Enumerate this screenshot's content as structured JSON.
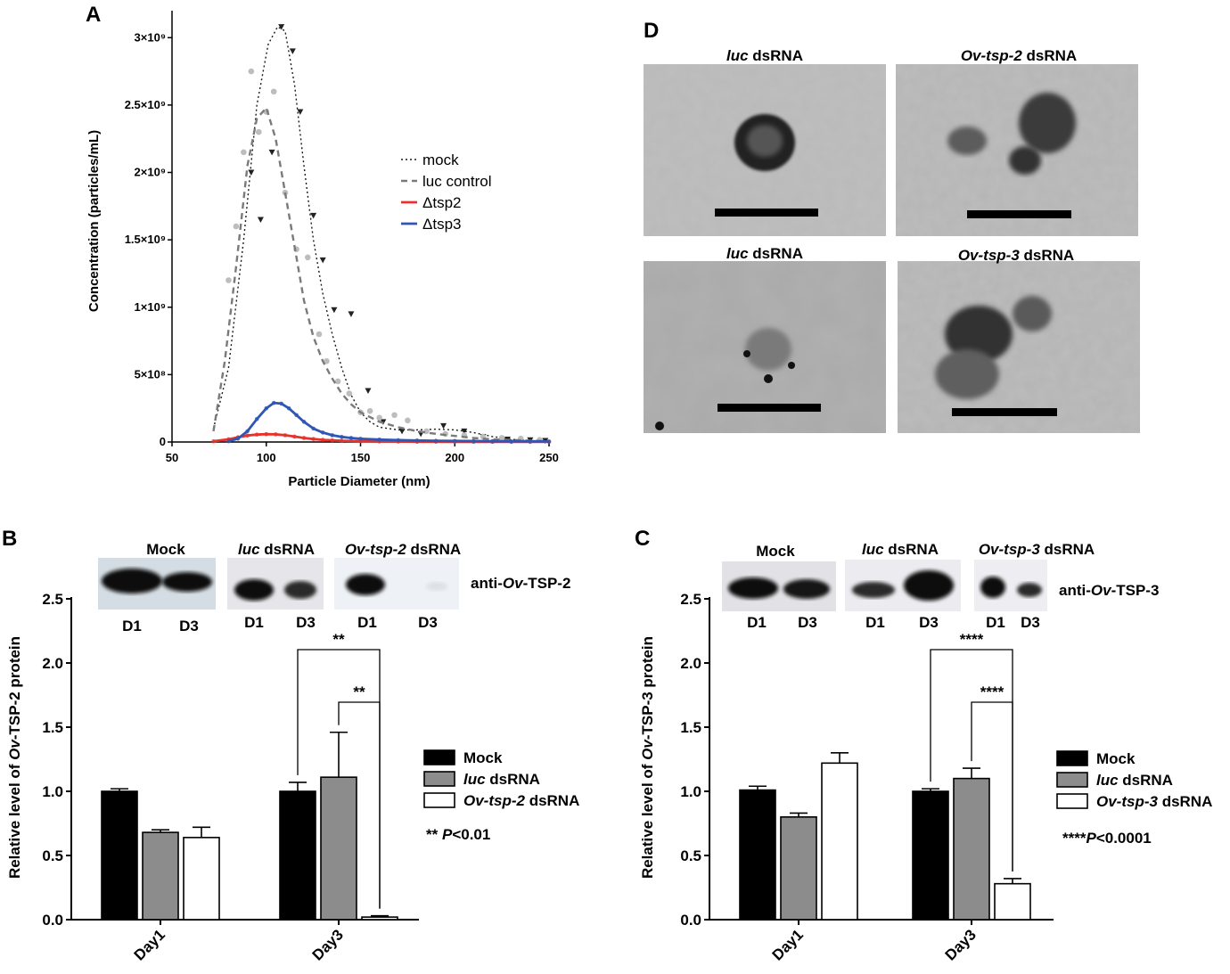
{
  "panels": {
    "a": "A",
    "b": "B",
    "c": "C",
    "d": "D"
  },
  "chart_data": [
    {
      "id": "A",
      "type": "line",
      "xlabel": "Particle Diameter (nm)",
      "ylabel": "Concentration (particles/mL)",
      "xlim": [
        50,
        250
      ],
      "ylim": [
        0,
        3200000000
      ],
      "xticks": [
        50,
        100,
        150,
        200,
        250
      ],
      "yticks": [
        {
          "value": 0,
          "label": "0"
        },
        {
          "value": 500000000,
          "label": "5×10⁸"
        },
        {
          "value": 1000000000,
          "label": "1×10⁹"
        },
        {
          "value": 1500000000,
          "label": "1.5×10⁹"
        },
        {
          "value": 2000000000,
          "label": "2×10⁹"
        },
        {
          "value": 2500000000,
          "label": "2.5×10⁹"
        },
        {
          "value": 3000000000,
          "label": "3×10⁹"
        }
      ],
      "legend_position": "right",
      "series": [
        {
          "name": "mock",
          "color": "#1a1a1a",
          "style": "dotted",
          "marker": "triangle",
          "x": [
            72,
            80,
            88,
            95,
            101,
            106,
            110,
            115,
            120,
            125,
            130,
            135,
            140,
            145,
            150,
            155,
            160,
            170,
            180,
            190,
            200,
            210,
            220,
            230,
            240,
            250
          ],
          "y": [
            100000000,
            550000000,
            1500000000,
            2500000000,
            2950000000,
            3080000000,
            3050000000,
            2650000000,
            2050000000,
            1500000000,
            1100000000,
            800000000,
            550000000,
            350000000,
            220000000,
            150000000,
            110000000,
            90000000,
            90000000,
            95000000,
            90000000,
            70000000,
            40000000,
            20000000,
            10000000,
            5000000
          ],
          "markers": [
            {
              "x": 92,
              "y": 2000000000
            },
            {
              "x": 97,
              "y": 1650000000
            },
            {
              "x": 103,
              "y": 2150000000
            },
            {
              "x": 108,
              "y": 3080000000
            },
            {
              "x": 114,
              "y": 2900000000
            },
            {
              "x": 118,
              "y": 2450000000
            },
            {
              "x": 125,
              "y": 1680000000
            },
            {
              "x": 130,
              "y": 1350000000
            },
            {
              "x": 136,
              "y": 980000000
            },
            {
              "x": 145,
              "y": 950000000
            },
            {
              "x": 154,
              "y": 380000000
            },
            {
              "x": 162,
              "y": 150000000
            },
            {
              "x": 172,
              "y": 80000000
            },
            {
              "x": 182,
              "y": 60000000
            },
            {
              "x": 194,
              "y": 120000000
            },
            {
              "x": 205,
              "y": 80000000
            },
            {
              "x": 215,
              "y": 40000000
            },
            {
              "x": 228,
              "y": 20000000
            },
            {
              "x": 240,
              "y": 15000000
            },
            {
              "x": 248,
              "y": 10000000
            }
          ]
        },
        {
          "name": "luc control",
          "color": "#7a7a7a",
          "style": "dashed",
          "marker": "circle",
          "x": [
            72,
            78,
            84,
            90,
            95,
            100,
            105,
            110,
            115,
            120,
            125,
            130,
            135,
            140,
            145,
            150,
            160,
            170,
            180,
            190,
            200,
            210,
            220,
            230,
            240,
            250
          ],
          "y": [
            80000000,
            600000000,
            1300000000,
            2050000000,
            2400000000,
            2480000000,
            2250000000,
            1850000000,
            1450000000,
            1050000000,
            780000000,
            600000000,
            470000000,
            360000000,
            280000000,
            220000000,
            150000000,
            110000000,
            80000000,
            60000000,
            45000000,
            30000000,
            20000000,
            15000000,
            10000000,
            5000000
          ],
          "markers": [
            {
              "x": 80,
              "y": 1200000000
            },
            {
              "x": 84,
              "y": 1600000000
            },
            {
              "x": 88,
              "y": 2150000000
            },
            {
              "x": 92,
              "y": 2750000000
            },
            {
              "x": 96,
              "y": 2300000000
            },
            {
              "x": 100,
              "y": 2450000000
            },
            {
              "x": 104,
              "y": 2600000000
            },
            {
              "x": 110,
              "y": 1850000000
            },
            {
              "x": 116,
              "y": 1430000000
            },
            {
              "x": 122,
              "y": 1370000000
            },
            {
              "x": 128,
              "y": 800000000
            },
            {
              "x": 132,
              "y": 600000000
            },
            {
              "x": 138,
              "y": 450000000
            },
            {
              "x": 144,
              "y": 360000000
            },
            {
              "x": 150,
              "y": 220000000
            },
            {
              "x": 155,
              "y": 230000000
            },
            {
              "x": 160,
              "y": 180000000
            },
            {
              "x": 168,
              "y": 200000000
            },
            {
              "x": 175,
              "y": 160000000
            },
            {
              "x": 185,
              "y": 80000000
            },
            {
              "x": 195,
              "y": 60000000
            },
            {
              "x": 205,
              "y": 50000000
            },
            {
              "x": 215,
              "y": 40000000
            },
            {
              "x": 225,
              "y": 30000000
            },
            {
              "x": 235,
              "y": 25000000
            },
            {
              "x": 245,
              "y": 15000000
            }
          ]
        },
        {
          "name": "Δtsp2",
          "color": "#e8312b",
          "style": "solid",
          "marker": "circle",
          "x": [
            72,
            80,
            85,
            90,
            95,
            100,
            105,
            110,
            115,
            120,
            125,
            130,
            135,
            140,
            150,
            160,
            170,
            180,
            190,
            200,
            210,
            220,
            230,
            240,
            250
          ],
          "y": [
            5000000,
            20000000,
            35000000,
            48000000,
            55000000,
            58000000,
            57000000,
            50000000,
            40000000,
            30000000,
            22000000,
            16000000,
            12000000,
            9000000,
            6000000,
            4000000,
            3000000,
            2000000,
            2000000,
            1500000,
            1000000,
            1000000,
            1000000,
            500000,
            500000
          ]
        },
        {
          "name": "Δtsp3",
          "color": "#2f55b5",
          "style": "solid",
          "marker": "circle",
          "x": [
            80,
            85,
            90,
            95,
            100,
            104,
            108,
            112,
            116,
            120,
            125,
            130,
            135,
            140,
            145,
            150,
            160,
            170,
            180,
            190,
            200,
            210,
            220,
            230,
            240,
            250
          ],
          "y": [
            5000000,
            25000000,
            80000000,
            170000000,
            250000000,
            290000000,
            285000000,
            250000000,
            200000000,
            150000000,
            100000000,
            70000000,
            50000000,
            38000000,
            30000000,
            24000000,
            18000000,
            14000000,
            11000000,
            9000000,
            8000000,
            7000000,
            6000000,
            5000000,
            5000000,
            4000000
          ]
        }
      ]
    },
    {
      "id": "B",
      "type": "bar",
      "ylabel_parts": [
        "Relative level of ",
        "Ov",
        "-TSP-2 protein"
      ],
      "categories": [
        "Day1",
        "Day3"
      ],
      "ylim": [
        0,
        2.5
      ],
      "yticks": [
        "0.0",
        "0.5",
        "1.0",
        "1.5",
        "2.0",
        "2.5"
      ],
      "series": [
        {
          "name": "Mock",
          "name_parts": [
            "",
            "",
            "Mock"
          ],
          "color": "#000000",
          "values": [
            1.0,
            1.0
          ],
          "errors": [
            0.02,
            0.07
          ]
        },
        {
          "name": "luc dsRNA",
          "name_parts": [
            "",
            "luc",
            " dsRNA"
          ],
          "color": "#8c8c8c",
          "values": [
            0.68,
            1.11
          ],
          "errors": [
            0.02,
            0.35
          ]
        },
        {
          "name": "Ov-tsp-2 dsRNA",
          "name_parts": [
            "",
            "Ov-tsp-2",
            " dsRNA"
          ],
          "color": "#ffffff",
          "values": [
            0.64,
            0.02
          ],
          "errors": [
            0.08,
            0.01
          ]
        }
      ],
      "significance": [
        {
          "from_series": 0,
          "to_series": 2,
          "category": 1,
          "label": "**"
        },
        {
          "from_series": 1,
          "to_series": 2,
          "category": 1,
          "label": "**"
        }
      ],
      "pvalue_parts": [
        "** ",
        "P",
        "<0.01"
      ],
      "blot": {
        "groups": [
          [
            "",
            "",
            "Mock"
          ],
          [
            "",
            "luc",
            " dsRNA"
          ],
          [
            "",
            "Ov-tsp-2",
            " dsRNA"
          ]
        ],
        "lanes": [
          "D1",
          "D3"
        ],
        "antibody_parts": [
          "anti-",
          "Ov",
          "-TSP-2"
        ]
      }
    },
    {
      "id": "C",
      "type": "bar",
      "ylabel_parts": [
        "Relative level of ",
        "Ov",
        "-TSP-3 protein"
      ],
      "categories": [
        "Day1",
        "Day3"
      ],
      "ylim": [
        0,
        2.5
      ],
      "yticks": [
        "0.0",
        "0.5",
        "1.0",
        "1.5",
        "2.0",
        "2.5"
      ],
      "series": [
        {
          "name": "Mock",
          "name_parts": [
            "",
            "",
            "Mock"
          ],
          "color": "#000000",
          "values": [
            1.01,
            1.0
          ],
          "errors": [
            0.03,
            0.02
          ]
        },
        {
          "name": "luc dsRNA",
          "name_parts": [
            "",
            "luc",
            " dsRNA"
          ],
          "color": "#8c8c8c",
          "values": [
            0.8,
            1.1
          ],
          "errors": [
            0.03,
            0.08
          ]
        },
        {
          "name": "Ov-tsp-3 dsRNA",
          "name_parts": [
            "",
            "Ov-tsp-3",
            " dsRNA"
          ],
          "color": "#ffffff",
          "values": [
            1.22,
            0.28
          ],
          "errors": [
            0.08,
            0.04
          ]
        }
      ],
      "significance": [
        {
          "from_series": 0,
          "to_series": 2,
          "category": 1,
          "label": "****"
        },
        {
          "from_series": 1,
          "to_series": 2,
          "category": 1,
          "label": "****"
        }
      ],
      "pvalue_parts": [
        "****",
        "P",
        "<0.0001"
      ],
      "blot": {
        "groups": [
          [
            "",
            "",
            "Mock"
          ],
          [
            "",
            "luc",
            " dsRNA"
          ],
          [
            "",
            "Ov-tsp-3",
            " dsRNA"
          ]
        ],
        "lanes": [
          "D1",
          "D3"
        ],
        "antibody_parts": [
          "anti-",
          "Ov",
          "-TSP-3"
        ]
      }
    }
  ],
  "micrographs": [
    {
      "title_parts": [
        "",
        "luc",
        " dsRNA"
      ]
    },
    {
      "title_parts": [
        "",
        "Ov-tsp-2",
        " dsRNA"
      ]
    },
    {
      "title_parts": [
        "",
        "luc",
        " dsRNA"
      ]
    },
    {
      "title_parts": [
        "",
        "Ov-tsp-3",
        " dsRNA"
      ]
    }
  ]
}
